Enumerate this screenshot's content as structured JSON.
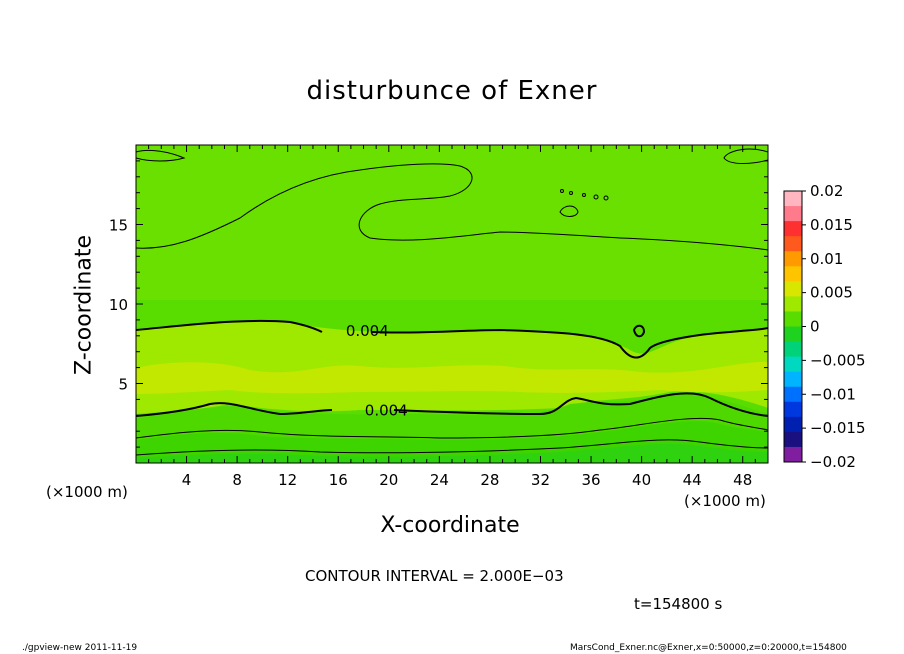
{
  "chart_data": {
    "type": "heatmap",
    "title": "disturbunce of Exner",
    "xlabel": "X-coordinate",
    "ylabel": "Z-coordinate",
    "x_unit_label": "(×1000 m)",
    "xlim": [
      0,
      50
    ],
    "ylim": [
      0,
      20
    ],
    "xticks": [
      "4",
      "8",
      "12",
      "16",
      "20",
      "24",
      "28",
      "32",
      "36",
      "40",
      "44",
      "48"
    ],
    "yticks": [
      "5",
      "10",
      "15"
    ],
    "xtick_values": [
      4,
      8,
      12,
      16,
      20,
      24,
      28,
      32,
      36,
      40,
      44,
      48
    ],
    "ytick_values": [
      5,
      10,
      15
    ],
    "colorbar": {
      "range": [
        -0.02,
        0.02
      ],
      "labels": [
        "0.02",
        "0.015",
        "0.01",
        "0.005",
        "0",
        "−0.005",
        "−0.01",
        "−0.015",
        "−0.02"
      ],
      "values": [
        0.02,
        0.015,
        0.01,
        0.005,
        0,
        -0.005,
        -0.01,
        -0.015,
        -0.02
      ],
      "colors": [
        "#ffb6c1",
        "#ff7a8a",
        "#ff3030",
        "#ff5a1e",
        "#ff9a00",
        "#ffc400",
        "#d9e600",
        "#9fe800",
        "#59dc00",
        "#1fd21f",
        "#00d27a",
        "#00d8c0",
        "#00b4ff",
        "#0070ff",
        "#0038e0",
        "#0020b0",
        "#1a1080",
        "#7f1f9f"
      ]
    },
    "contour_labels": [
      "0.004",
      "0.004"
    ],
    "field_colors": {
      "background": "#59dc00",
      "upper": "#6ae000",
      "band": "#9fe800",
      "core": "#c2e800",
      "lower1": "#4fd800",
      "lower2": "#3ed400",
      "lower3": "#2fd20e"
    }
  },
  "contour_interval_text": "CONTOUR INTERVAL = 2.000E−03",
  "time_text": "t=154800  s",
  "footer_left": "./gpview-new   2011-11-19",
  "footer_right": "MarsCond_Exner.nc@Exner,x=0:50000,z=0:20000,t=154800"
}
